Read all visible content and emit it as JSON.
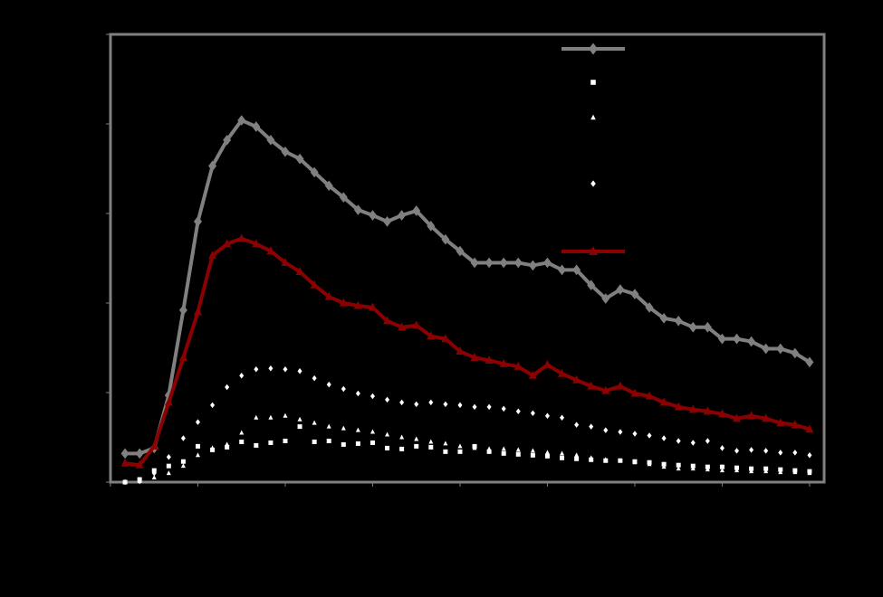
{
  "chart_data": {
    "type": "line",
    "x": [
      1,
      2,
      3,
      4,
      5,
      6,
      7,
      8,
      9,
      10,
      11,
      12,
      13,
      14,
      15,
      16,
      17,
      18,
      19,
      20,
      21,
      22,
      23,
      24,
      25,
      26,
      27,
      28,
      29,
      30,
      31,
      32,
      33,
      34,
      35,
      36,
      37,
      38,
      39,
      40,
      41,
      42,
      43,
      44,
      45,
      46,
      47,
      48
    ],
    "xlim": [
      0,
      49
    ],
    "xticks": [
      0,
      6,
      12,
      18,
      24,
      30,
      36,
      42,
      48
    ],
    "ylim": [
      0,
      5
    ],
    "yticks": [
      0,
      1,
      2,
      3,
      4,
      5
    ],
    "legend": "top-right",
    "series": [
      {
        "color": "#808080",
        "marker": "diamond",
        "line": true,
        "values": [
          0.32,
          0.32,
          0.38,
          0.97,
          1.92,
          2.91,
          3.53,
          3.82,
          4.04,
          3.97,
          3.82,
          3.69,
          3.61,
          3.46,
          3.31,
          3.18,
          3.04,
          2.98,
          2.91,
          2.98,
          3.03,
          2.86,
          2.71,
          2.58,
          2.45,
          2.45,
          2.45,
          2.45,
          2.42,
          2.45,
          2.37,
          2.37,
          2.2,
          2.05,
          2.15,
          2.1,
          1.95,
          1.83,
          1.8,
          1.73,
          1.73,
          1.6,
          1.6,
          1.57,
          1.49,
          1.49,
          1.44,
          1.34
        ]
      },
      {
        "color": "#ffffff",
        "marker": "square",
        "line": false,
        "values": [
          0,
          0.03,
          0.13,
          0.18,
          0.23,
          0.4,
          0.36,
          0.39,
          0.45,
          0.41,
          0.44,
          0.46,
          0.62,
          0.45,
          0.46,
          0.42,
          0.43,
          0.44,
          0.38,
          0.37,
          0.4,
          0.39,
          0.34,
          0.34,
          0.4,
          0.34,
          0.32,
          0.31,
          0.3,
          0.29,
          0.27,
          0.26,
          0.25,
          0.24,
          0.24,
          0.23,
          0.22,
          0.2,
          0.19,
          0.18,
          0.17,
          0.17,
          0.16,
          0.15,
          0.15,
          0.14,
          0.13,
          0.12
        ]
      },
      {
        "color": "#ffffff",
        "marker": "triangle",
        "line": false,
        "values": [
          0,
          0.01,
          0.05,
          0.1,
          0.18,
          0.3,
          0.38,
          0.42,
          0.55,
          0.72,
          0.72,
          0.74,
          0.7,
          0.66,
          0.62,
          0.6,
          0.58,
          0.56,
          0.53,
          0.5,
          0.48,
          0.45,
          0.43,
          0.4,
          0.38,
          0.37,
          0.37,
          0.36,
          0.35,
          0.33,
          0.32,
          0.3,
          0.27,
          0.25,
          0.24,
          0.22,
          0.2,
          0.17,
          0.15,
          0.15,
          0.14,
          0.13,
          0.13,
          0.12,
          0.12,
          0.11,
          0.11,
          0.1
        ]
      },
      {
        "color": "#ffffff",
        "marker": "diamond",
        "line": false,
        "values": [
          0,
          0.01,
          0.1,
          0.28,
          0.49,
          0.67,
          0.86,
          1.06,
          1.19,
          1.26,
          1.27,
          1.26,
          1.24,
          1.16,
          1.09,
          1.04,
          0.99,
          0.96,
          0.92,
          0.89,
          0.87,
          0.89,
          0.87,
          0.86,
          0.84,
          0.84,
          0.82,
          0.79,
          0.77,
          0.74,
          0.72,
          0.64,
          0.62,
          0.58,
          0.56,
          0.54,
          0.52,
          0.49,
          0.46,
          0.44,
          0.46,
          0.38,
          0.35,
          0.36,
          0.35,
          0.33,
          0.33,
          0.3
        ]
      },
      {
        "color": "#8b0000",
        "marker": "triangle",
        "line": true,
        "values": [
          0.21,
          0.19,
          0.4,
          0.89,
          1.39,
          1.9,
          2.53,
          2.66,
          2.72,
          2.66,
          2.58,
          2.45,
          2.35,
          2.2,
          2.07,
          2.0,
          1.97,
          1.95,
          1.8,
          1.73,
          1.75,
          1.63,
          1.6,
          1.46,
          1.39,
          1.36,
          1.32,
          1.29,
          1.19,
          1.31,
          1.21,
          1.14,
          1.07,
          1.02,
          1.07,
          0.99,
          0.96,
          0.89,
          0.84,
          0.81,
          0.79,
          0.76,
          0.71,
          0.74,
          0.71,
          0.66,
          0.64,
          0.59
        ]
      }
    ]
  }
}
